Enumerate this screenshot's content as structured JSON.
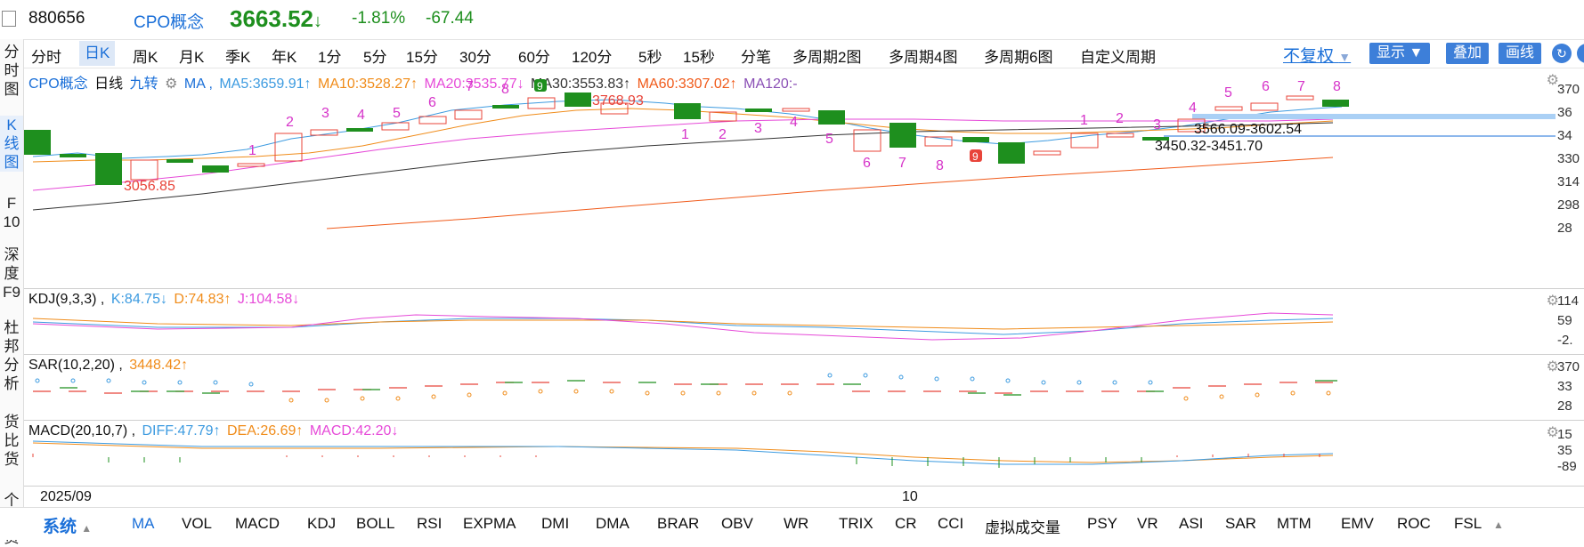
{
  "header": {
    "code": "880656",
    "name": "CPO概念",
    "price": "3663.52",
    "arrow": "↓",
    "change_pct": "-1.81%",
    "change_abs": "-67.44"
  },
  "left_nav": {
    "items": [
      {
        "label": "分\n时\n图"
      },
      {
        "label": "K\n线\n图"
      },
      {
        "label": "F\n10"
      },
      {
        "label": "深\n度\nF9"
      },
      {
        "label": "杜\n邦\n分\n析"
      },
      {
        "label": "货\n比\n货"
      },
      {
        "label": "个\n股\n资"
      }
    ]
  },
  "period_tabs": [
    "分时",
    "日K",
    "周K",
    "月K",
    "季K",
    "年K",
    "1分",
    "5分",
    "15分",
    "30分",
    "60分",
    "120分",
    "5秒",
    "15秒",
    "分笔",
    "多周期2图",
    "多周期4图",
    "多周期6图",
    "自定义周期"
  ],
  "period_active": "日K",
  "right_controls": {
    "fq": "不复权",
    "show": "显示",
    "overlay": "叠加",
    "draw": "画线"
  },
  "main_legend": {
    "name": "CPO概念",
    "period": "日线",
    "nine": "九转",
    "ma_label": "MA ,",
    "ma5": "MA5:3659.91↑",
    "ma10": "MA10:3528.27↑",
    "ma20": "MA20:3535.77↓",
    "ma30": "MA30:3553.83↑",
    "ma60": "MA60:3307.02↑",
    "ma120": "MA120:-"
  },
  "main_annotations": {
    "low": "3056.85",
    "high": "3768.93",
    "range": "3566.09-3602.54",
    "range2": "3450.32-3451.70"
  },
  "kdj_legend": {
    "title": "KDJ(9,3,3) ,",
    "k": "K:84.75↓",
    "d": "D:74.83↑",
    "j": "J:104.58↓"
  },
  "sar_legend": {
    "title": "SAR(10,2,20) ,",
    "v": "3448.42↑"
  },
  "macd_legend": {
    "title": "MACD(20,10,7) ,",
    "diff": "DIFF:47.79↑",
    "dea": "DEA:26.69↑",
    "macd": "MACD:42.20↓"
  },
  "date_axis": {
    "left": "2025/09",
    "mid": "10"
  },
  "y_axes": {
    "main": [
      "370",
      "36",
      "34",
      "330",
      "314",
      "298",
      "28"
    ],
    "kdj": [
      "114",
      "59",
      "-2."
    ],
    "sar": [
      "370",
      "33",
      "28"
    ],
    "macd": [
      "15",
      "35",
      "-89"
    ]
  },
  "bottom": {
    "system": "系统",
    "indicators": [
      "MA",
      "VOL",
      "MACD",
      "KDJ",
      "BOLL",
      "RSI",
      "EXPMA",
      "DMI",
      "DMA",
      "BRAR",
      "OBV",
      "WR",
      "TRIX",
      "CR",
      "CCI",
      "虚拟成交量",
      "PSY",
      "VR",
      "ASI",
      "SAR",
      "MTM",
      "EMV",
      "ROC",
      "FSL"
    ],
    "active": "MA"
  },
  "colors": {
    "up": "#e8443a",
    "down": "#1e8f1e",
    "accent": "#1a6fd8",
    "ma5": "#3d9be0",
    "ma10": "#f08c1a",
    "ma20": "#e64ad8",
    "ma30": "#333333",
    "ma60": "#f05a1a",
    "ma120": "#8a4fb5"
  }
}
